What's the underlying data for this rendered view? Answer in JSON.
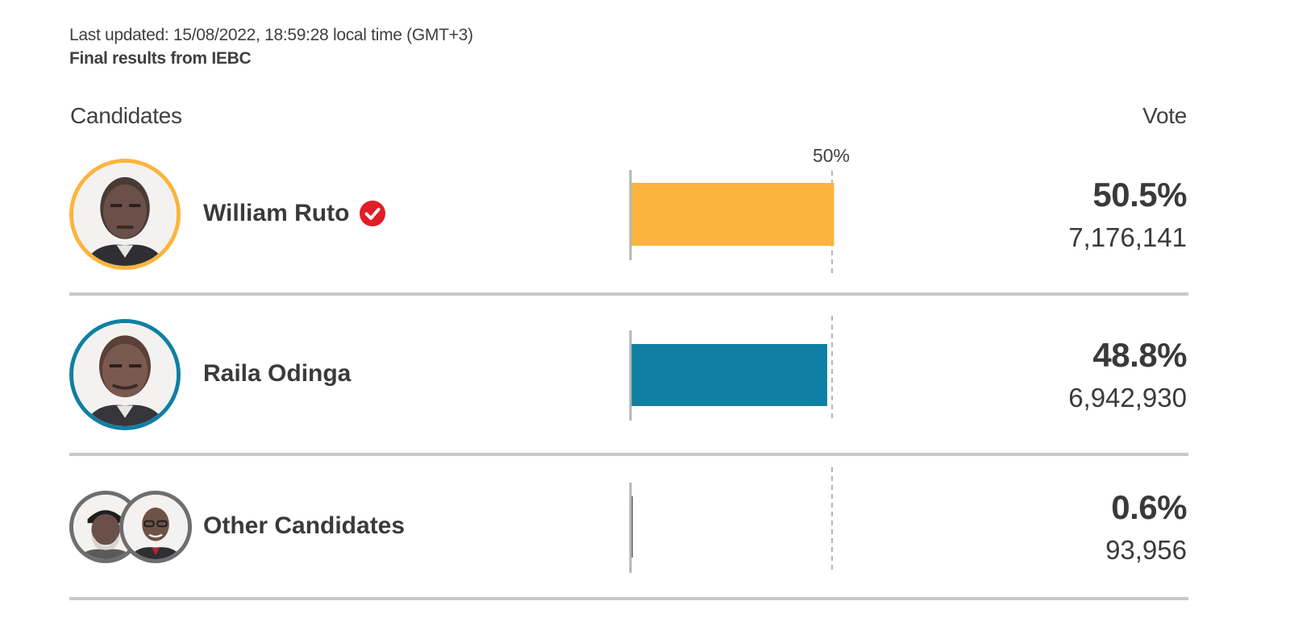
{
  "header": {
    "last_updated": "Last updated: 15/08/2022, 18:59:28 local time (GMT+3)",
    "source": "Final results from IEBC"
  },
  "columns": {
    "left": "Candidates",
    "right": "Vote"
  },
  "colors": {
    "ruto": "#fbb43c",
    "odinga": "#0f7fa3",
    "others": "#6e6e6e",
    "winner_check": "#e21d25",
    "divider": "#c8c8c8",
    "axis": "#b4b4b4"
  },
  "chart_data": {
    "type": "bar",
    "orientation": "horizontal",
    "reference_line": {
      "value": 50,
      "label": "50%"
    },
    "xlim": [
      0,
      100
    ],
    "categories": [
      "William Ruto",
      "Raila Odinga",
      "Other Candidates"
    ],
    "values": [
      50.5,
      48.8,
      0.6
    ],
    "value_labels": [
      "50.5%",
      "48.8%",
      "0.6%"
    ],
    "votes": [
      "7,176,141",
      "6,942,930",
      "93,956"
    ],
    "winner": "William Ruto"
  },
  "icons": {
    "winner": "check-circle-icon",
    "avatar": "candidate-photo"
  }
}
